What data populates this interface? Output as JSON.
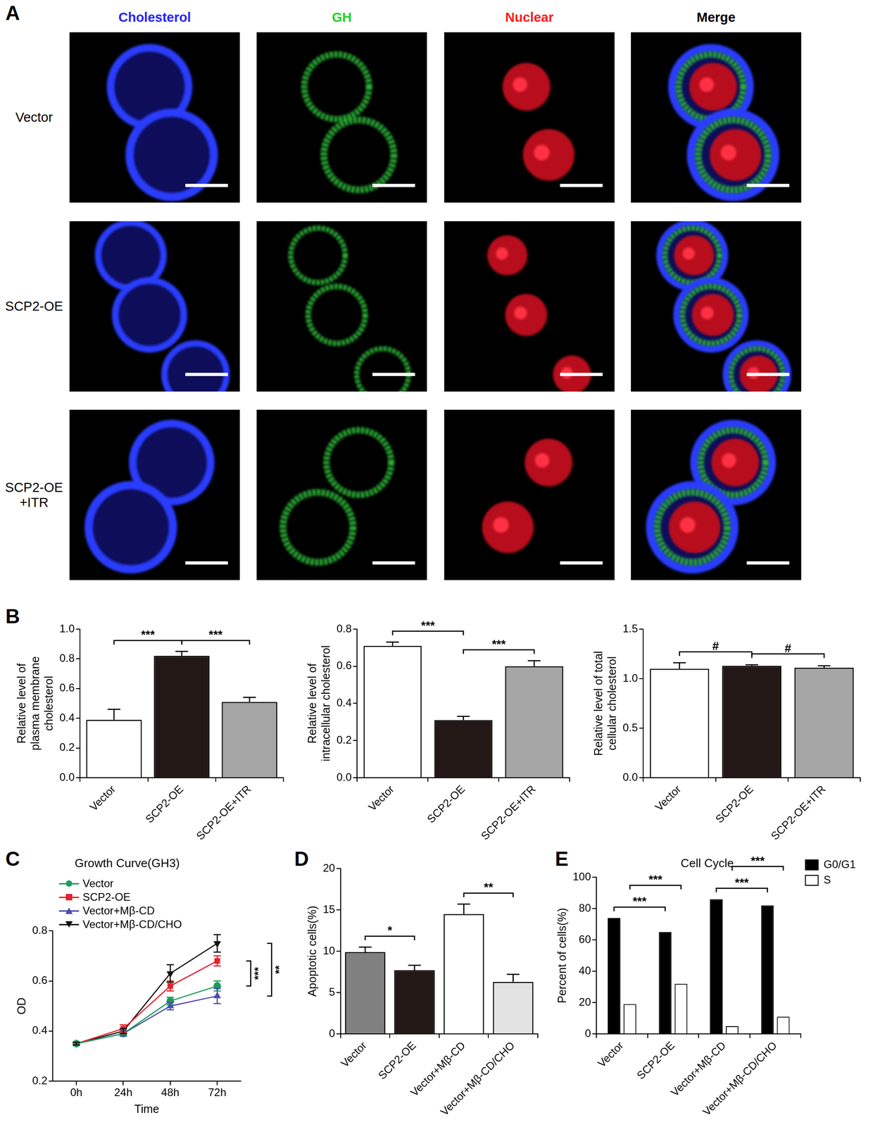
{
  "panel_labels": [
    "A",
    "B",
    "C",
    "D",
    "E"
  ],
  "micrograph": {
    "channels": [
      "Cholesterol",
      "GH",
      "Nuclear",
      "Merge"
    ],
    "rows": [
      "Vector",
      "SCP2-OE",
      "SCP2-OE\n+ITR"
    ]
  },
  "chart_data": [
    {
      "type": "bar",
      "y_label": "Relative level of\nplasma membrane\ncholesterol",
      "categories": [
        "Vector",
        "SCP2-OE",
        "SCP2-OE+ITR"
      ],
      "values": [
        0.39,
        0.82,
        0.51
      ],
      "errors": [
        0.07,
        0.03,
        0.03
      ],
      "colors": [
        "#ffffff",
        "#231815",
        "#a6a6a6"
      ],
      "ylim": [
        0,
        1.0
      ],
      "yticks": [
        {
          "value": 0,
          "label": "0.0"
        },
        0.2,
        0.4,
        0.6,
        0.8,
        {
          "value": 1,
          "label": "1.0"
        }
      ],
      "grid": false,
      "annotations": [
        {
          "from": "Vector",
          "to": "SCP2-OE",
          "label": "***"
        },
        {
          "from": "SCP2-OE",
          "to": "SCP2-OE+ITR",
          "label": "***"
        }
      ]
    },
    {
      "type": "bar",
      "y_label": "Relative level of\nintracellular cholesterol",
      "categories": [
        "Vector",
        "SCP2-OE",
        "SCP2-OE+ITR"
      ],
      "values": [
        0.71,
        0.31,
        0.6
      ],
      "errors": [
        0.02,
        0.02,
        0.03
      ],
      "colors": [
        "#ffffff",
        "#231815",
        "#a6a6a6"
      ],
      "ylim": [
        0,
        0.8
      ],
      "yticks": [
        {
          "value": 0,
          "label": "0.0"
        },
        0.2,
        0.4,
        0.6,
        0.8
      ],
      "grid": false,
      "annotations": [
        {
          "from": "Vector",
          "to": "SCP2-OE",
          "label": "***"
        },
        {
          "from": "SCP2-OE",
          "to": "SCP2-OE+ITR",
          "label": "***"
        }
      ]
    },
    {
      "type": "bar",
      "y_label": "Relative level of total\ncellular cholesterol",
      "categories": [
        "Vector",
        "SCP2-OE",
        "SCP2-OE+ITR"
      ],
      "values": [
        1.1,
        1.13,
        1.11
      ],
      "errors": [
        0.06,
        0.01,
        0.02
      ],
      "colors": [
        "#ffffff",
        "#231815",
        "#a6a6a6"
      ],
      "ylim": [
        0,
        1.5
      ],
      "yticks": [
        {
          "value": 0,
          "label": "0.0"
        },
        0.5,
        {
          "value": 1,
          "label": "1.0"
        },
        1.5
      ],
      "grid": false,
      "annotations": [
        {
          "from": "Vector",
          "to": "SCP2-OE",
          "label": "#"
        },
        {
          "from": "SCP2-OE",
          "to": "SCP2-OE+ITR",
          "label": "#"
        }
      ]
    },
    {
      "type": "line",
      "title": "Growth Curve(GH3)",
      "x_label": "Time",
      "y_label": "OD",
      "categories": [
        "0h",
        "24h",
        "48h",
        "72h"
      ],
      "series": [
        {
          "name": "Vector",
          "color": "#1b9e5a",
          "marker": "circle",
          "values": [
            0.35,
            0.39,
            0.52,
            0.58
          ],
          "errors": [
            0.005,
            0.01,
            0.015,
            0.02
          ]
        },
        {
          "name": "SCP2-OE",
          "color": "#e8202a",
          "marker": "square",
          "values": [
            0.35,
            0.41,
            0.58,
            0.68
          ],
          "errors": [
            0.005,
            0.015,
            0.02,
            0.02
          ]
        },
        {
          "name": "Vector+Mβ-CD",
          "color": "#4b4bb0",
          "marker": "triangle",
          "values": [
            0.35,
            0.39,
            0.5,
            0.54
          ],
          "errors": [
            0.005,
            0.01,
            0.015,
            0.03
          ]
        },
        {
          "name": "Vector+Mβ-CD/CHO",
          "color": "#111111",
          "marker": "triangle_down",
          "values": [
            0.35,
            0.4,
            0.63,
            0.75
          ],
          "errors": [
            0.005,
            0.01,
            0.035,
            0.035
          ]
        }
      ],
      "ylim": [
        0.2,
        0.8
      ],
      "yticks": [
        0.2,
        0.4,
        0.6,
        0.8
      ],
      "legend": "top-left",
      "grid": false,
      "annotations": [
        {
          "from": "SCP2-OE",
          "to": "Vector",
          "label": "***"
        },
        {
          "from": "Vector+Mβ-CD/CHO",
          "to": "Vector+Mβ-CD",
          "label": "**"
        }
      ]
    },
    {
      "type": "bar",
      "y_label": "Apoptotic cells(%)",
      "categories": [
        "Vector",
        "SCP2-OE",
        "Vector+Mβ-CD",
        "Vector+Mβ-CD/CHO"
      ],
      "values": [
        9.9,
        7.7,
        14.5,
        6.3
      ],
      "errors": [
        0.6,
        0.6,
        1.2,
        0.9
      ],
      "colors": [
        "#808080",
        "#231815",
        "#ffffff",
        "#e3e3e3"
      ],
      "ylim": [
        0,
        20
      ],
      "yticks": [
        0,
        5,
        10,
        15,
        20
      ],
      "grid": false,
      "annotations": [
        {
          "from": "Vector",
          "to": "SCP2-OE",
          "label": "*"
        },
        {
          "from": "Vector+Mβ-CD",
          "to": "Vector+Mβ-CD/CHO",
          "label": "**"
        }
      ]
    },
    {
      "type": "bar",
      "title": "Cell Cycle",
      "y_label": "Percent of cells(%)",
      "categories": [
        "Vector",
        "SCP2-OE",
        "Vector+Mβ-CD",
        "Vector+Mβ-CD/CHO"
      ],
      "series": [
        {
          "name": "G0/G1",
          "color": "#000000",
          "values": [
            74,
            65,
            86,
            82
          ]
        },
        {
          "name": "S",
          "color": "#ffffff",
          "values": [
            19,
            32,
            5,
            11
          ]
        }
      ],
      "ylim": [
        0,
        100
      ],
      "yticks": [
        0,
        20,
        40,
        60,
        80,
        100
      ],
      "legend": "right",
      "grid": false,
      "annotations": [
        {
          "from": "Vector",
          "to": "SCP2-OE",
          "series": "G0/G1",
          "label": "***"
        },
        {
          "from": "Vector",
          "to": "SCP2-OE",
          "series": "S",
          "label": "***"
        },
        {
          "from": "Vector+Mβ-CD",
          "to": "Vector+Mβ-CD/CHO",
          "series": "G0/G1",
          "label": "***"
        },
        {
          "from": "Vector+Mβ-CD",
          "to": "Vector+Mβ-CD/CHO",
          "series": "S",
          "label": "***"
        }
      ]
    }
  ]
}
